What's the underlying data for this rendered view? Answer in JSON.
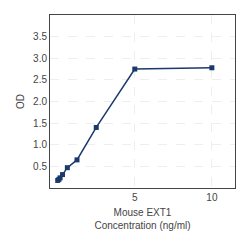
{
  "chart_data": {
    "type": "line",
    "x": [
      0,
      0.078,
      0.156,
      0.313,
      0.625,
      1.25,
      2.5,
      5,
      10
    ],
    "values": [
      0.175,
      0.2,
      0.235,
      0.31,
      0.47,
      0.65,
      1.4,
      2.75,
      2.78
    ],
    "color": "#1a3a6b",
    "marker": "square",
    "line_style": "solid",
    "x_label": "Mouse EXT1\nConcentration (ng/ml)",
    "y_label": "OD",
    "xlim": [
      -0.5,
      11.5
    ],
    "xticks": [
      5,
      10
    ],
    "ylim": [
      0,
      4.0
    ],
    "yticks": [
      0.5,
      {
        "value": 1,
        "label": "1.0"
      },
      1.5,
      {
        "value": 2,
        "label": "2.0"
      },
      2.5,
      {
        "value": 3,
        "label": "3.0"
      },
      3.5
    ],
    "grid": true
  }
}
